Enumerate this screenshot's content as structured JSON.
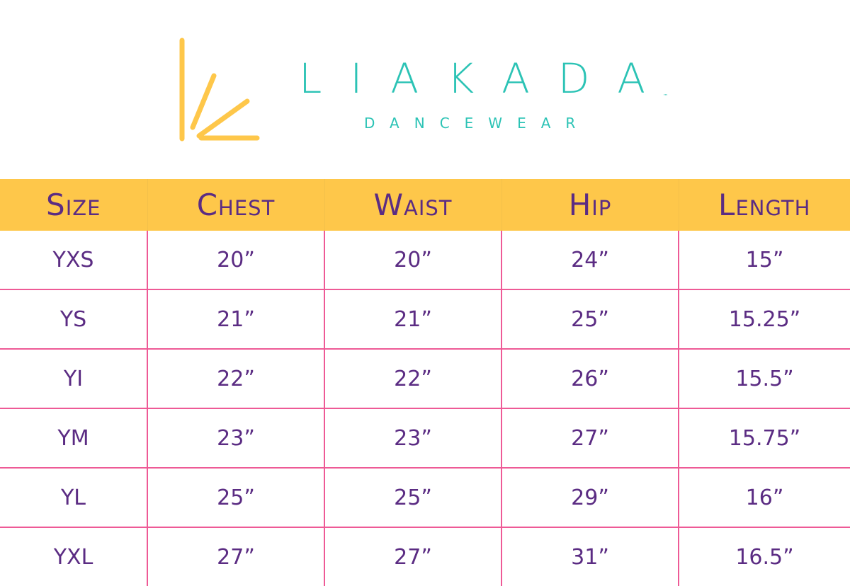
{
  "brand": {
    "name": "LIAKADA",
    "tagline": "DANCEWEAR",
    "trademark": "™",
    "colors": {
      "logo_yellow": "#FEC74A",
      "brand_teal": "#2CC3B5",
      "text_purple": "#5B2C83",
      "grid_pink": "#EE5A96"
    }
  },
  "table": {
    "headers": [
      "Size",
      "Chest",
      "Waist",
      "Hip",
      "Length"
    ],
    "rows": [
      [
        "YXS",
        "20”",
        "20”",
        "24”",
        "15”"
      ],
      [
        "YS",
        "21”",
        "21”",
        "25”",
        "15.25”"
      ],
      [
        "YI",
        "22”",
        "22”",
        "26”",
        "15.5”"
      ],
      [
        "YM",
        "23”",
        "23”",
        "27”",
        "15.75”"
      ],
      [
        "YL",
        "25”",
        "25”",
        "29”",
        "16”"
      ],
      [
        "YXL",
        "27”",
        "27”",
        "31”",
        "16.5”"
      ]
    ]
  }
}
